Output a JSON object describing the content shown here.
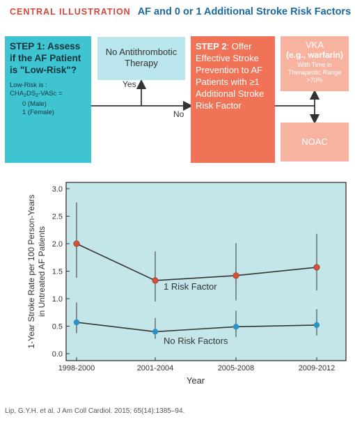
{
  "header": {
    "label": "CENTRAL ILLUSTRATION",
    "title": "AF and 0 or 1 Additional Stroke Risk Factors"
  },
  "flow": {
    "step1": {
      "title": "STEP 1: Assess if the AF Patient is \"Low-Risk\"?",
      "low_risk_label": "Low-Risk is :",
      "score": "CHA2DS2-VASc =",
      "male": "0 (Male)",
      "female": "1 (Female)"
    },
    "no_antithrombotic": "No Antithrombotic Therapy",
    "yes_label": "Yes",
    "no_label": "No",
    "step2": {
      "bold": "STEP 2",
      "text": ": Offer Effective Stroke Prevention to AF Patients with ≥1 Additional Stroke Risk Factor"
    },
    "vka": {
      "line1": "VKA",
      "line2": "(e.g., warfarin)",
      "line3": "With Time in Therapeutic Range >70%"
    },
    "noac": "NOAC"
  },
  "colors": {
    "teal": "#3fc5d1",
    "light_teal": "#b9e6ed",
    "salmon": "#f07357",
    "light_salmon": "#f7b39f",
    "plot_bg": "#c4e6e8",
    "red_marker": "#d94f36",
    "blue_marker": "#2a93c4"
  },
  "chart_data": {
    "type": "line",
    "categories": [
      "1998-2000",
      "2001-2004",
      "2005-2008",
      "2009-2012"
    ],
    "xlabel": "Year",
    "ylabel": "1-Year Stroke Rate per 100 Person-Years in Untreated AF Patients",
    "ylim": [
      0,
      3.0
    ],
    "yticks": [
      "0.0",
      "0.5",
      "1.0",
      "1.5",
      "2.0",
      "2.5",
      "3.0"
    ],
    "grid": false,
    "series": [
      {
        "name": "1 Risk Factor",
        "values": [
          2.0,
          1.33,
          1.42,
          1.57
        ],
        "ci_low": [
          1.38,
          0.95,
          0.97,
          1.15
        ],
        "ci_high": [
          2.75,
          1.86,
          2.01,
          2.18
        ]
      },
      {
        "name": "No Risk Factors",
        "values": [
          0.57,
          0.4,
          0.49,
          0.52
        ],
        "ci_low": [
          0.37,
          0.27,
          0.3,
          0.33
        ],
        "ci_high": [
          0.93,
          0.65,
          0.78,
          0.81
        ]
      }
    ]
  },
  "footer": {
    "citation": "Lip, G.Y.H. et al. J Am Coll Cardiol. 2015; 65(14):1385–94."
  }
}
